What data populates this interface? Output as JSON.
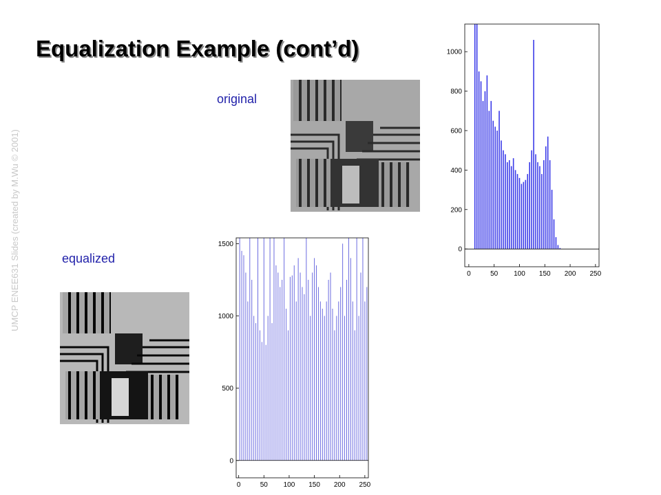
{
  "title": "Equalization Example (cont’d)",
  "side_note": "UMCP ENEE631 Slides (created by M.Wu © 2001)",
  "labels": {
    "original": "original",
    "equalized": "equalized"
  },
  "chart_data": [
    {
      "type": "bar",
      "color": "#3a3ae8",
      "x": [
        12,
        16,
        20,
        24,
        28,
        32,
        36,
        40,
        44,
        48,
        52,
        56,
        60,
        64,
        68,
        72,
        76,
        80,
        84,
        88,
        92,
        96,
        100,
        104,
        108,
        112,
        116,
        120,
        124,
        128,
        132,
        136,
        140,
        144,
        148,
        152,
        156,
        160,
        164,
        168,
        172,
        176,
        180
      ],
      "values": [
        1140,
        1140,
        900,
        850,
        750,
        800,
        880,
        700,
        750,
        650,
        620,
        600,
        700,
        550,
        500,
        480,
        440,
        450,
        420,
        460,
        400,
        380,
        360,
        330,
        340,
        350,
        380,
        440,
        500,
        1060,
        480,
        440,
        420,
        380,
        450,
        520,
        570,
        450,
        300,
        150,
        60,
        20,
        5
      ],
      "xlim": [
        -8,
        257
      ],
      "xticks": [
        0,
        50,
        100,
        150,
        200,
        250
      ],
      "ylim": [
        -90,
        1140
      ],
      "yticks": [
        0,
        200,
        400,
        600,
        800,
        1000
      ]
    },
    {
      "type": "bar",
      "color": "#6b6be0",
      "x": [
        2,
        6,
        10,
        14,
        18,
        22,
        26,
        30,
        34,
        38,
        42,
        46,
        50,
        54,
        58,
        62,
        66,
        70,
        74,
        78,
        82,
        86,
        90,
        94,
        98,
        102,
        106,
        110,
        114,
        118,
        122,
        126,
        130,
        134,
        138,
        142,
        146,
        150,
        154,
        158,
        162,
        166,
        170,
        174,
        178,
        182,
        186,
        190,
        194,
        198,
        202,
        206,
        210,
        214,
        218,
        222,
        226,
        230,
        234,
        238,
        242,
        246,
        250,
        254
      ],
      "values": [
        1540,
        1450,
        1420,
        1300,
        1100,
        1540,
        1250,
        1000,
        950,
        1540,
        900,
        820,
        1540,
        800,
        1000,
        1540,
        950,
        1540,
        1350,
        1300,
        1200,
        1250,
        1540,
        1050,
        900,
        1270,
        1280,
        1350,
        1100,
        1400,
        1300,
        1200,
        1150,
        1540,
        1250,
        1000,
        1300,
        1400,
        1350,
        1200,
        1100,
        1050,
        1000,
        1100,
        1250,
        1300,
        1050,
        900,
        1000,
        1100,
        1200,
        1500,
        1000,
        1250,
        1540,
        1400,
        1100,
        900,
        1540,
        1000,
        1300,
        1540,
        1100,
        1200
      ],
      "xlim": [
        -5,
        257
      ],
      "xticks": [
        0,
        50,
        100,
        150,
        200,
        250
      ],
      "ylim": [
        -120,
        1540
      ],
      "yticks": [
        0,
        500,
        1000,
        1500
      ]
    }
  ]
}
